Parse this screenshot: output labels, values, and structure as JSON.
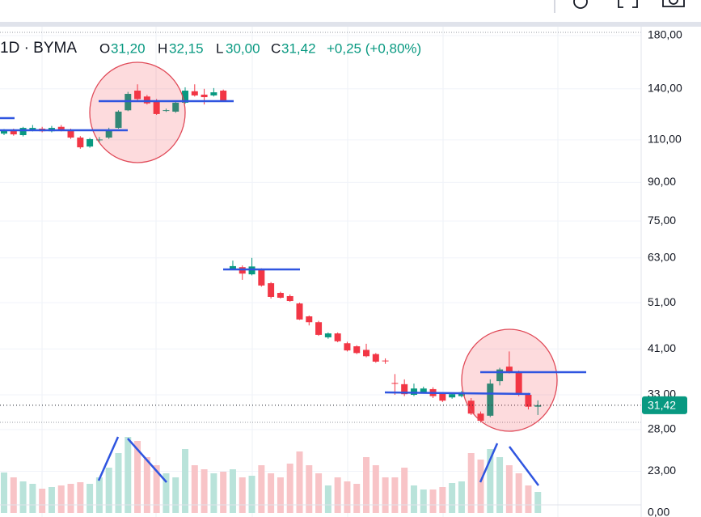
{
  "chart_data": {
    "type": "candlestick",
    "legend_header": {
      "symbol": "1D · BYMA",
      "open_label": "O",
      "open": "31,20",
      "high_label": "H",
      "high": "32,15",
      "low_label": "L",
      "low": "30,00",
      "close_label": "C",
      "close": "31,42",
      "change": "+0,25 (+0,80%)"
    },
    "log_scale": true,
    "grid": true,
    "up_color": "#089981",
    "down_color": "#f23645",
    "volume_up_color": "#b9e3da",
    "volume_down_color": "#f8c4c7",
    "categories": [
      null,
      null,
      null,
      null,
      null,
      null,
      null,
      null,
      null,
      null,
      null,
      null,
      null,
      null,
      null,
      null,
      null,
      null,
      null,
      null,
      null,
      null,
      null,
      null,
      null,
      null,
      null,
      null,
      null,
      null,
      null,
      null,
      null,
      null,
      null,
      null,
      null,
      null,
      null,
      null,
      null,
      null,
      null,
      null,
      null,
      null,
      null,
      null,
      null,
      null,
      null,
      null,
      null,
      null,
      null,
      null,
      null
    ],
    "open": [
      113.3,
      115.5,
      112.5,
      115,
      116,
      114.6,
      117,
      115,
      111.2,
      106.6,
      109.8,
      111.2,
      116.4,
      126.5,
      138.8,
      135,
      132.6,
      126.2,
      125.7,
      131.1,
      138.4,
      136.2,
      135.7,
      138.8,
      59.8,
      60.3,
      58.3,
      59.7,
      55.9,
      53.4,
      52.6,
      50.8,
      47.8,
      46.5,
      43.3,
      44.1,
      42.1,
      41.5,
      40.8,
      40,
      38.8,
      34.9,
      34.7,
      33,
      33.4,
      33.9,
      33.2,
      32.6,
      32.8,
      32.1,
      30.2,
      29.9,
      35.2,
      37.7,
      36.8,
      33,
      31.2
    ],
    "high": [
      115.8,
      116,
      117,
      118,
      117,
      117.5,
      118,
      116,
      112,
      111,
      111.5,
      116.5,
      126.5,
      138,
      143,
      136,
      133.4,
      127.5,
      132,
      141,
      143,
      140,
      140.5,
      139.5,
      62.2,
      60.8,
      63,
      60,
      56.2,
      53.7,
      53,
      51,
      48,
      46.8,
      44.3,
      44.3,
      42.4,
      41.7,
      42,
      40.2,
      39.2,
      36.4,
      35.5,
      34.8,
      34.3,
      34.2,
      33.4,
      33.3,
      33.6,
      32.5,
      30.5,
      35.5,
      37.5,
      40.5,
      37,
      33.3,
      32.15
    ],
    "low": [
      112.5,
      112.2,
      111.8,
      114.5,
      114,
      114,
      114.5,
      110.5,
      105.5,
      106,
      108.5,
      110.5,
      116,
      126,
      132.6,
      130,
      123.8,
      125.5,
      125,
      130.5,
      135,
      130,
      135,
      132,
      59.5,
      56.8,
      58,
      55,
      52,
      52,
      51.2,
      47,
      45.8,
      43.6,
      43,
      42.3,
      40.5,
      40,
      39.4,
      38.4,
      38.2,
      33,
      32.8,
      32.8,
      33.3,
      32.5,
      31.9,
      32.4,
      32.6,
      30,
      29,
      29.7,
      34.5,
      36.5,
      32.8,
      30.8,
      30
    ],
    "close": [
      115.1,
      112.9,
      116.4,
      116.4,
      114.6,
      116.4,
      115,
      111.2,
      106.2,
      110.4,
      110.2,
      115.5,
      125.7,
      136.7,
      133.4,
      130.7,
      124.3,
      126.6,
      131.1,
      138.8,
      135.7,
      134.6,
      137.7,
      132.6,
      60.6,
      58.5,
      60.5,
      55.3,
      52.4,
      52.2,
      51.4,
      47.1,
      46.5,
      43.8,
      44.1,
      42.5,
      40.7,
      40.2,
      39.6,
      38.6,
      38.7,
      34.8,
      33.1,
      34,
      34,
      32.8,
      32.1,
      33.1,
      33.4,
      30.2,
      29.2,
      34.8,
      37.2,
      36.7,
      33.1,
      31.2,
      31.42
    ],
    "volume": [
      50,
      44,
      39,
      36,
      30,
      32,
      34,
      36,
      38,
      36,
      44,
      56,
      74,
      94,
      89,
      69,
      59,
      49,
      44,
      79,
      59,
      54,
      49,
      51,
      54,
      44,
      46,
      59,
      49,
      44,
      61,
      76,
      59,
      49,
      34,
      44,
      39,
      36,
      69,
      59,
      44,
      44,
      56,
      34,
      29,
      29,
      32,
      37,
      39,
      74,
      66,
      79,
      69,
      59,
      49,
      34,
      26
    ],
    "ylim": [
      28,
      180
    ],
    "yticks": [
      {
        "value": 180,
        "label": "180,00"
      },
      {
        "value": 140,
        "label": "140,00"
      },
      {
        "value": 110,
        "label": "110,00"
      },
      {
        "value": 90,
        "label": "90,00"
      },
      {
        "value": 75,
        "label": "75,00"
      },
      {
        "value": 63,
        "label": "63,00"
      },
      {
        "value": 51,
        "label": "51,00"
      },
      {
        "value": 41,
        "label": "41,00"
      },
      {
        "value": 33,
        "label": "33,00"
      },
      {
        "value": 28,
        "label": "28,00"
      },
      {
        "value": 23,
        "label": "23,00"
      }
    ],
    "volume_ylim": [
      0,
      100
    ],
    "volume_yticks": [
      {
        "value": 0,
        "label": "0,00"
      }
    ],
    "last_price": {
      "value": 31.42,
      "label": "31,42"
    }
  }
}
